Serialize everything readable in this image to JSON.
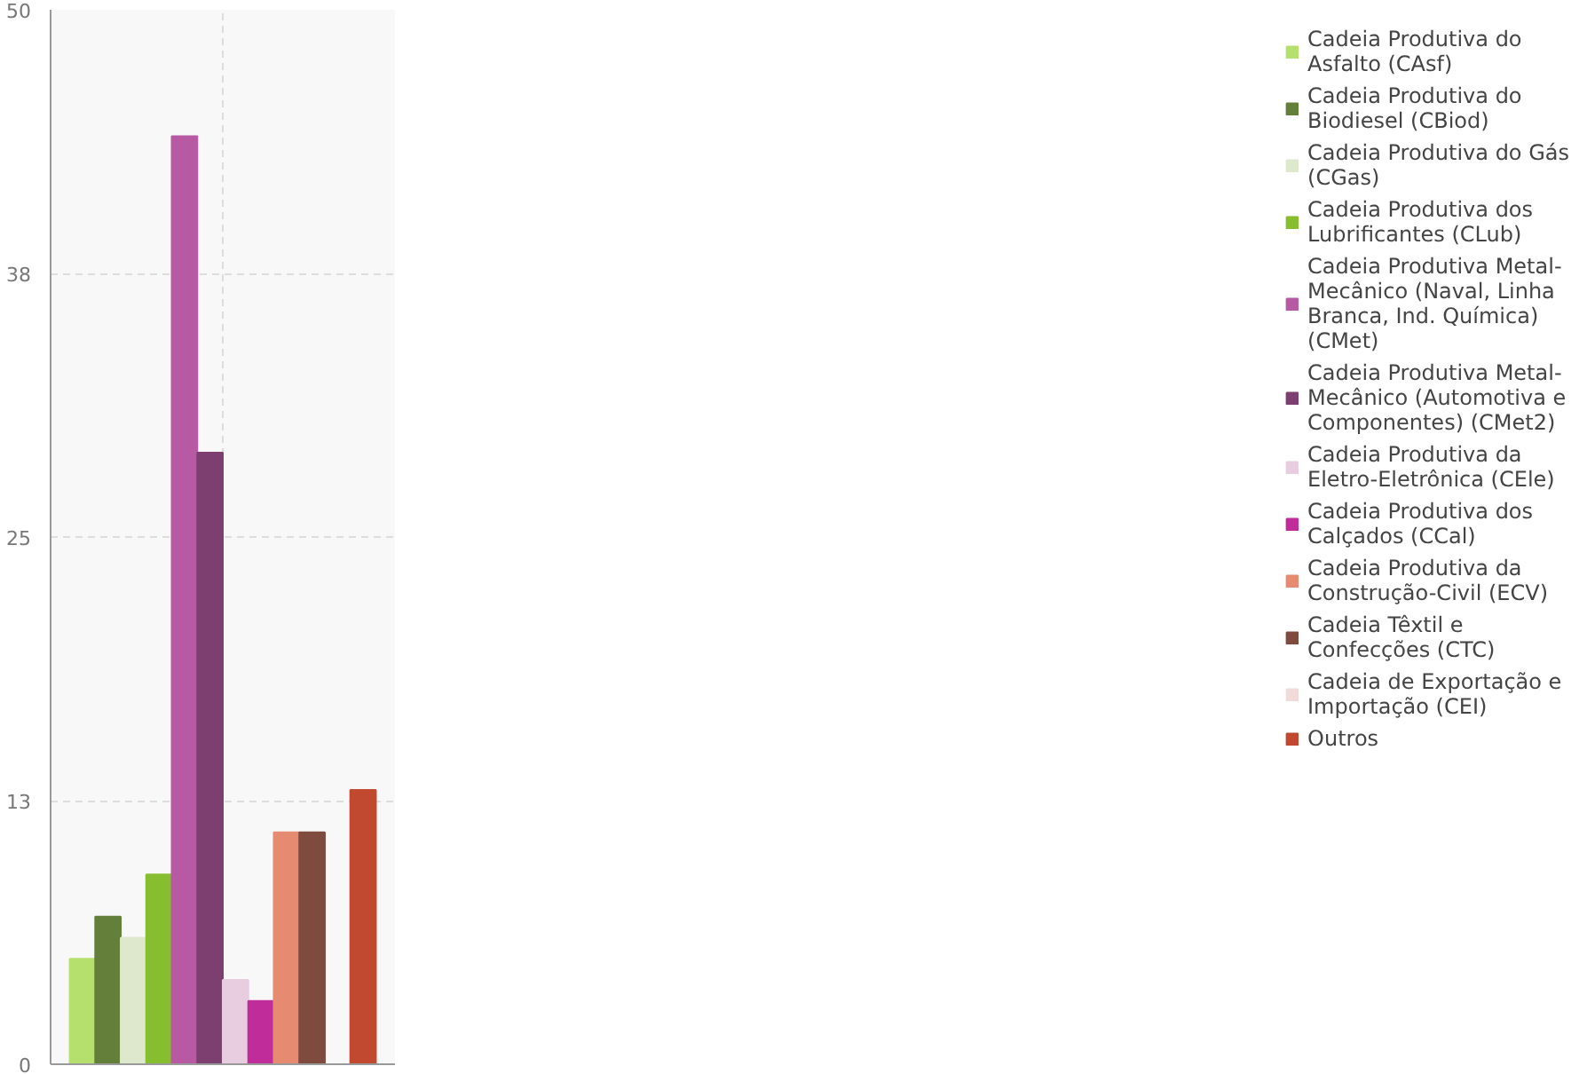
{
  "chart_data": {
    "type": "bar",
    "categories": [
      null
    ],
    "series": [
      {
        "name": "Cadeia Produtiva do Asfalto (CAsf)",
        "color": "#b5e06e",
        "values": [
          5
        ]
      },
      {
        "name": "Cadeia Produtiva do Biodiesel (CBiod)",
        "color": "#647f3a",
        "values": [
          7
        ]
      },
      {
        "name": "Cadeia Produtiva do Gás (CGas)",
        "color": "#dde8cc",
        "values": [
          6
        ]
      },
      {
        "name": "Cadeia Produtiva dos Lubrificantes (CLub)",
        "color": "#86be2f",
        "values": [
          9
        ]
      },
      {
        "name": "Cadeia Produtiva Metal-Mecânico (Naval, Linha Branca, Ind. Química) (CMet)",
        "color": "#b85aa3",
        "values": [
          44
        ]
      },
      {
        "name": "Cadeia Produtiva Metal-Mecânico (Automotiva e Componentes) (CMet2)",
        "color": "#7d3f70",
        "values": [
          29
        ]
      },
      {
        "name": "Cadeia Produtiva da Eletro-Eletrônica (CEle)",
        "color": "#e8cce0",
        "values": [
          4
        ]
      },
      {
        "name": "Cadeia Produtiva dos Calçados (CCal)",
        "color": "#c02c9a",
        "values": [
          3
        ]
      },
      {
        "name": "Cadeia Produtiva da Construção-Civil (ECV)",
        "color": "#e68b72",
        "values": [
          11
        ]
      },
      {
        "name": "Cadeia Têxtil e Confecções (CTC)",
        "color": "#7f4b3f",
        "values": [
          11
        ]
      },
      {
        "name": "Cadeia de Exportação e Importação (CEI)",
        "color": "#f0dada",
        "values": [
          0
        ]
      },
      {
        "name": "Outros",
        "color": "#c1492f",
        "values": [
          13
        ]
      }
    ],
    "ylim": [
      0,
      50
    ],
    "yticks": [
      0,
      {
        "value": 12.5,
        "label": "13"
      },
      25,
      {
        "value": 37.5,
        "label": "38"
      },
      50
    ],
    "grid": true,
    "legend": "right",
    "tick_labels": "y"
  }
}
